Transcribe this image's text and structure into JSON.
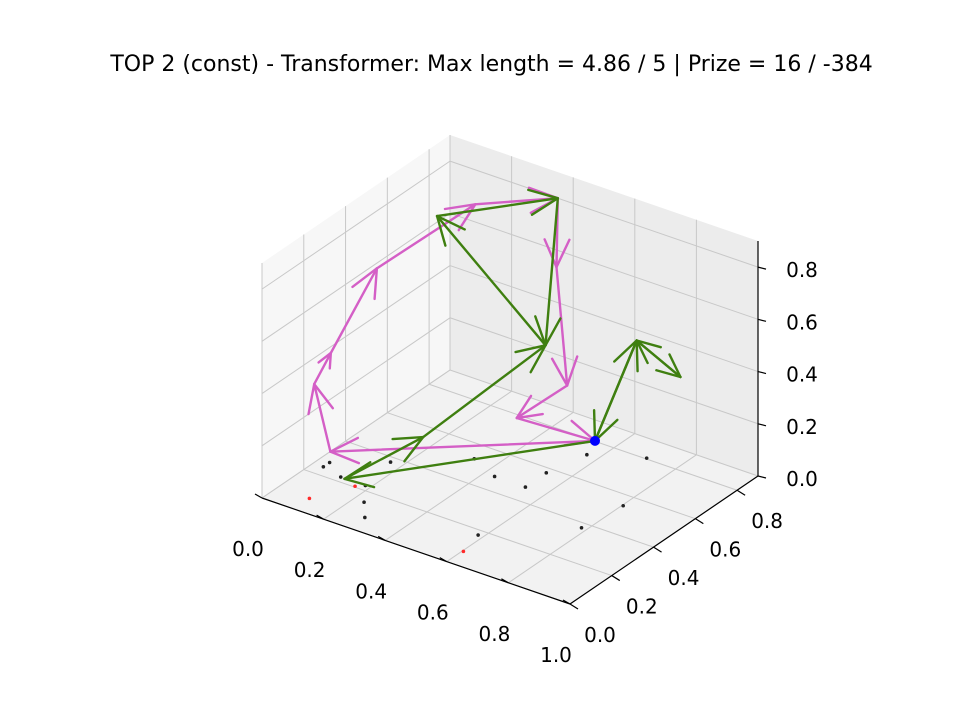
{
  "chart_data": {
    "type": "scatter",
    "projection": "3d",
    "title": "TOP 2 (const) - Transformer: Max length = 4.86 / 5 | Prize = 16 / -384",
    "xlabel": "",
    "ylabel": "",
    "zlabel": "",
    "xlim": [
      0,
      1.0
    ],
    "ylim": [
      0,
      0.9
    ],
    "zlim": [
      0,
      0.9
    ],
    "grid": true,
    "x_ticks": [
      0.0,
      0.2,
      0.4,
      0.6,
      0.8,
      1.0
    ],
    "x_tick_labels": [
      "0.0",
      "0.2",
      "0.4",
      "0.6",
      "0.8",
      "1.0"
    ],
    "y_ticks": [
      0.0,
      0.2,
      0.4,
      0.6,
      0.8
    ],
    "y_tick_labels": [
      "0.0",
      "0.2",
      "0.4",
      "0.6",
      "0.8"
    ],
    "z_ticks": [
      0.0,
      0.2,
      0.4,
      0.6,
      0.8
    ],
    "z_tick_labels": [
      "0.0",
      "0.2",
      "0.4",
      "0.6",
      "0.8"
    ],
    "colors": {
      "route_pink": "#d45fc6",
      "route_green": "#3f7f10",
      "depot": "#0000ff",
      "node_black": "#222222",
      "node_red": "#ff2a2a"
    },
    "depot": [
      0.62,
      0.68,
      0.1
    ],
    "nodes": [
      [
        0.72,
        0.78,
        0.02
      ],
      [
        0.18,
        0.35,
        0.02
      ],
      [
        0.05,
        0.22,
        0.02
      ],
      [
        0.05,
        0.25,
        0.02
      ],
      [
        0.55,
        0.45,
        0.02
      ],
      [
        0.35,
        0.5,
        0.02
      ],
      [
        0.45,
        0.45,
        0.02
      ],
      [
        0.25,
        0.12,
        0.02
      ],
      [
        0.12,
        0.2,
        0.02
      ],
      [
        0.2,
        0.2,
        0.02
      ],
      [
        0.3,
        0.05,
        0.02
      ],
      [
        0.6,
        0.15,
        0.02
      ],
      [
        0.82,
        0.52,
        0.02
      ],
      [
        0.8,
        0.35,
        0.02
      ],
      [
        0.55,
        0.55,
        0.02
      ],
      [
        0.58,
        0.7,
        0.02
      ]
    ],
    "red_nodes": [
      [
        0.62,
        0.05,
        0.02
      ],
      [
        0.12,
        0.05,
        0.02
      ],
      [
        0.18,
        0.18,
        0.02
      ]
    ],
    "series": [
      {
        "color": "route_pink",
        "points": [
          [
            0.62,
            0.68,
            0.1
          ],
          [
            0.1,
            0.18,
            0.12
          ],
          [
            0.0,
            0.25,
            0.3
          ],
          [
            0.02,
            0.3,
            0.4
          ],
          [
            0.0,
            0.55,
            0.58
          ],
          [
            0.15,
            0.8,
            0.75
          ],
          [
            0.35,
            0.9,
            0.8
          ],
          [
            0.4,
            0.82,
            0.6
          ],
          [
            0.55,
            0.65,
            0.3
          ],
          [
            0.42,
            0.6,
            0.15
          ],
          [
            0.62,
            0.68,
            0.1
          ]
        ]
      },
      {
        "color": "route_green",
        "points": [
          [
            0.62,
            0.68,
            0.1
          ],
          [
            0.64,
            0.85,
            0.4
          ],
          [
            0.85,
            0.75,
            0.4
          ],
          [
            0.64,
            0.85,
            0.4
          ],
          [
            0.62,
            0.68,
            0.1
          ],
          [
            0.2,
            0.1,
            0.1
          ],
          [
            0.32,
            0.3,
            0.2
          ],
          [
            0.5,
            0.62,
            0.45
          ],
          [
            0.08,
            0.72,
            0.72
          ],
          [
            0.35,
            0.9,
            0.8
          ],
          [
            0.5,
            0.62,
            0.45
          ]
        ]
      }
    ]
  }
}
